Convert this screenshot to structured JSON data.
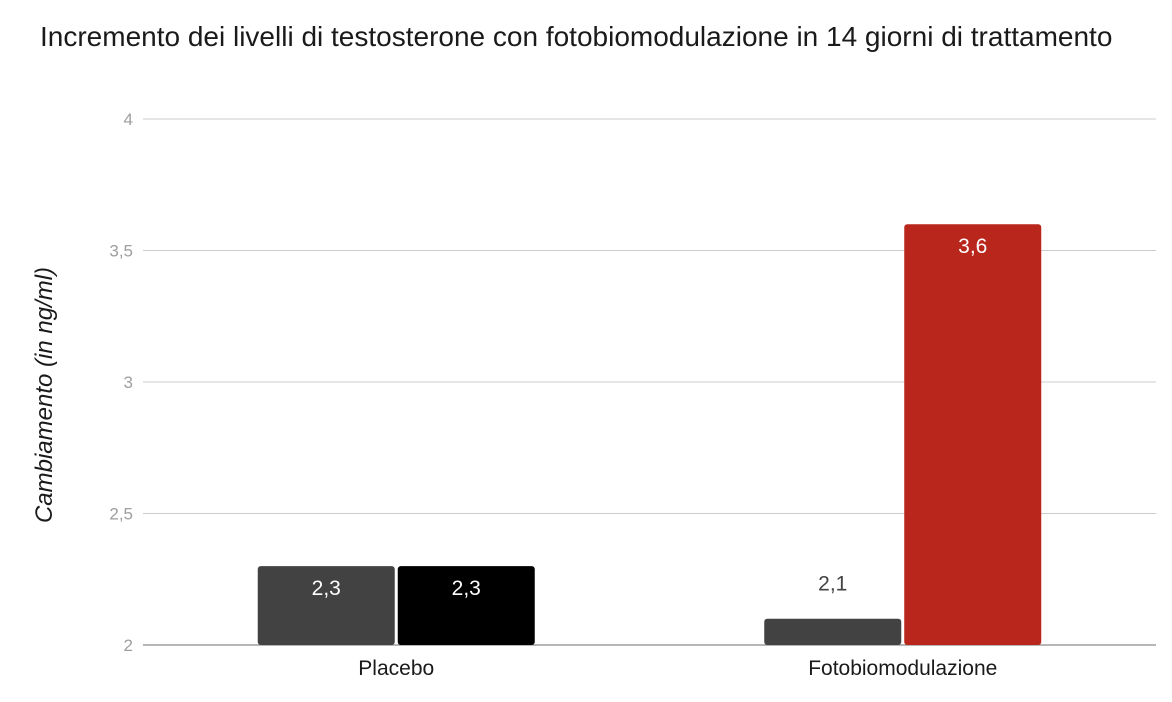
{
  "chart_data": {
    "type": "bar",
    "title": "Incremento dei livelli di testosterone con fotobiomodulazione in 14 giorni di trattamento",
    "ylabel": "Cambiamento (in ng/ml)",
    "xlabel": "",
    "ylim": [
      2,
      4
    ],
    "yticks": [
      2,
      2.5,
      3,
      3.5,
      4
    ],
    "ytick_labels": [
      "2",
      "2,5",
      "3",
      "3,5",
      "4"
    ],
    "grid": true,
    "legend": "none",
    "categories": [
      "Placebo",
      "Fotobiomodulazione"
    ],
    "series": [
      {
        "values": [
          2.3,
          2.1
        ],
        "labels": [
          "2,3",
          "2,1"
        ],
        "color": "#424242"
      },
      {
        "values": [
          2.3,
          3.6
        ],
        "labels": [
          "2,3",
          "3,6"
        ],
        "colors": [
          "#000000",
          "#b9261c"
        ]
      }
    ]
  }
}
